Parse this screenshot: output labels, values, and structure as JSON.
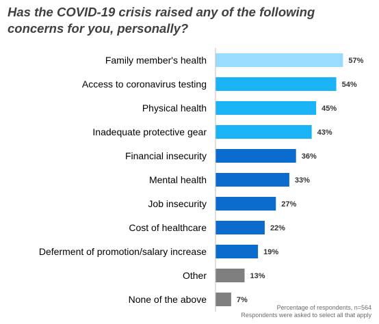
{
  "chart_data": {
    "type": "bar",
    "orientation": "horizontal",
    "title": "Has the COVID-19 crisis raised any of the following concerns for you, personally?",
    "categories": [
      "Family member's health",
      "Access to coronavirus testing",
      "Physical health",
      "Inadequate protective gear",
      "Financial insecurity",
      "Mental health",
      "Job insecurity",
      "Cost of healthcare",
      "Deferment of promotion/salary increase",
      "Other",
      "None of the above"
    ],
    "values": [
      57,
      54,
      45,
      43,
      36,
      33,
      27,
      22,
      19,
      13,
      7
    ],
    "value_labels": [
      "57%",
      "54%",
      "45%",
      "43%",
      "36%",
      "33%",
      "27%",
      "22%",
      "19%",
      "13%",
      "7%"
    ],
    "bar_colors": [
      "#99dcff",
      "#1ab3f5",
      "#1ab3f5",
      "#1ab3f5",
      "#0b6ccd",
      "#0b6ccd",
      "#0b6ccd",
      "#0b6ccd",
      "#0b6ccd",
      "#7f7f7f",
      "#7f7f7f"
    ],
    "xlim": [
      0,
      100
    ],
    "xlabel": "",
    "ylabel": "",
    "grid": false
  },
  "footnotes": {
    "line1": "Percentage of respondents, n=564",
    "line2": "Respondents were asked to select all that apply"
  },
  "colors": {
    "title": "#404040",
    "label_text": "#000000",
    "axis_line": "#bfbfbf"
  }
}
